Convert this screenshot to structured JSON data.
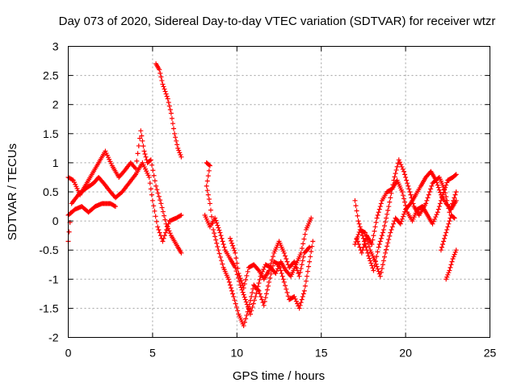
{
  "chart_data": {
    "type": "scatter",
    "title": "Day 073 of 2020, Sidereal Day-to-day VTEC variation (SDTVAR) for receiver wtzr",
    "xlabel": "GPS time / hours",
    "ylabel": "SDTVAR / TECUs",
    "xlim": [
      0,
      25
    ],
    "ylim": [
      -2,
      3
    ],
    "xticks": [
      0,
      5,
      10,
      15,
      20,
      25
    ],
    "yticks": [
      -2,
      -1.5,
      -1,
      -0.5,
      0,
      0.5,
      1,
      1.5,
      2,
      2.5,
      3
    ],
    "grid": true,
    "marker": "plus",
    "color": "#ff0000",
    "series": [
      {
        "values": [
          [
            0.0,
            0.75
          ],
          [
            0.3,
            0.7
          ],
          [
            0.7,
            0.45
          ],
          [
            1.0,
            0.6
          ],
          [
            1.4,
            0.8
          ],
          [
            1.8,
            1.0
          ],
          [
            2.2,
            1.2
          ],
          [
            2.6,
            0.95
          ],
          [
            3.0,
            0.75
          ],
          [
            3.3,
            0.85
          ],
          [
            3.7,
            1.0
          ],
          [
            4.0,
            0.9
          ],
          [
            4.3,
            1.55
          ],
          [
            4.5,
            1.2
          ],
          [
            4.7,
            1.0
          ],
          [
            4.9,
            1.05
          ],
          [
            5.2,
            0.6
          ],
          [
            5.5,
            0.3
          ],
          [
            5.8,
            -0.05
          ],
          [
            6.1,
            -0.25
          ],
          [
            6.5,
            -0.45
          ],
          [
            6.7,
            -0.55
          ]
        ]
      },
      {
        "values": [
          [
            0.0,
            -0.35
          ],
          [
            0.2,
            0.3
          ],
          [
            0.6,
            0.45
          ],
          [
            1.0,
            0.55
          ],
          [
            1.5,
            0.65
          ],
          [
            1.8,
            0.75
          ],
          [
            2.1,
            0.65
          ],
          [
            2.5,
            0.5
          ],
          [
            2.8,
            0.4
          ],
          [
            3.2,
            0.5
          ],
          [
            3.6,
            0.65
          ],
          [
            4.0,
            0.8
          ],
          [
            4.4,
            1.0
          ],
          [
            4.8,
            0.75
          ],
          [
            5.0,
            0.35
          ],
          [
            5.3,
            -0.1
          ],
          [
            5.6,
            -0.35
          ],
          [
            6.0,
            0.0
          ],
          [
            6.4,
            0.05
          ],
          [
            6.7,
            0.1
          ]
        ]
      },
      {
        "values": [
          [
            0.0,
            0.1
          ],
          [
            0.4,
            0.2
          ],
          [
            0.8,
            0.25
          ],
          [
            1.2,
            0.15
          ],
          [
            1.6,
            0.25
          ],
          [
            2.0,
            0.3
          ],
          [
            2.5,
            0.3
          ],
          [
            2.8,
            0.25
          ]
        ]
      },
      {
        "values": [
          [
            5.2,
            2.7
          ],
          [
            5.4,
            2.6
          ],
          [
            5.6,
            2.35
          ],
          [
            5.9,
            2.1
          ],
          [
            6.1,
            1.85
          ],
          [
            6.3,
            1.5
          ],
          [
            6.5,
            1.25
          ],
          [
            6.7,
            1.1
          ]
        ]
      },
      {
        "values": [
          [
            8.2,
            1.0
          ],
          [
            8.4,
            0.95
          ],
          [
            8.2,
            0.6
          ],
          [
            8.4,
            0.3
          ],
          [
            8.6,
            -0.15
          ],
          [
            8.9,
            -0.5
          ],
          [
            9.2,
            -0.8
          ],
          [
            9.5,
            -1.0
          ],
          [
            9.8,
            -1.3
          ],
          [
            10.1,
            -1.6
          ],
          [
            10.4,
            -1.8
          ],
          [
            10.7,
            -1.5
          ],
          [
            11.0,
            -1.1
          ],
          [
            11.3,
            -1.2
          ],
          [
            11.6,
            -1.45
          ],
          [
            11.9,
            -1.05
          ],
          [
            12.2,
            -0.7
          ],
          [
            12.5,
            -0.75
          ],
          [
            12.8,
            -1.05
          ],
          [
            13.1,
            -1.35
          ],
          [
            13.4,
            -1.3
          ],
          [
            13.7,
            -1.5
          ],
          [
            14.0,
            -1.2
          ],
          [
            14.3,
            -0.7
          ],
          [
            14.5,
            -0.35
          ]
        ]
      },
      {
        "values": [
          [
            8.1,
            0.1
          ],
          [
            8.4,
            -0.1
          ],
          [
            8.7,
            0.05
          ],
          [
            9.0,
            -0.2
          ],
          [
            9.3,
            -0.5
          ],
          [
            9.6,
            -0.65
          ],
          [
            9.9,
            -0.8
          ],
          [
            10.2,
            -1.1
          ],
          [
            10.5,
            -1.35
          ],
          [
            10.8,
            -1.6
          ],
          [
            11.1,
            -1.3
          ],
          [
            11.4,
            -0.95
          ],
          [
            11.7,
            -0.75
          ],
          [
            12.0,
            -0.8
          ],
          [
            12.3,
            -0.9
          ],
          [
            12.6,
            -0.7
          ],
          [
            12.9,
            -0.85
          ],
          [
            13.2,
            -0.95
          ],
          [
            13.5,
            -0.75
          ],
          [
            13.8,
            -0.55
          ],
          [
            14.1,
            -0.15
          ],
          [
            14.4,
            0.05
          ]
        ]
      },
      {
        "values": [
          [
            9.6,
            -0.3
          ],
          [
            9.9,
            -0.55
          ],
          [
            10.1,
            -0.9
          ],
          [
            10.4,
            -1.15
          ],
          [
            10.7,
            -0.8
          ],
          [
            11.0,
            -0.75
          ],
          [
            11.3,
            -0.85
          ],
          [
            11.6,
            -1.0
          ],
          [
            11.9,
            -0.85
          ],
          [
            12.2,
            -0.55
          ],
          [
            12.5,
            -0.35
          ],
          [
            12.8,
            -0.55
          ],
          [
            13.1,
            -0.8
          ],
          [
            13.4,
            -0.7
          ],
          [
            13.7,
            -0.95
          ],
          [
            14.0,
            -0.55
          ],
          [
            14.3,
            -0.45
          ]
        ]
      },
      {
        "values": [
          [
            17.0,
            0.35
          ],
          [
            17.2,
            0.0
          ],
          [
            17.5,
            -0.3
          ],
          [
            17.8,
            -0.6
          ],
          [
            18.1,
            -0.85
          ],
          [
            18.4,
            -0.45
          ],
          [
            18.7,
            -0.15
          ],
          [
            19.0,
            0.25
          ],
          [
            19.3,
            0.7
          ],
          [
            19.6,
            1.05
          ],
          [
            19.9,
            0.85
          ],
          [
            20.2,
            0.55
          ],
          [
            20.5,
            0.25
          ],
          [
            20.8,
            0.1
          ],
          [
            21.2,
            0.3
          ],
          [
            21.6,
            0.65
          ],
          [
            22.0,
            0.75
          ],
          [
            22.3,
            0.55
          ],
          [
            22.6,
            0.15
          ],
          [
            23.0,
            0.5
          ]
        ]
      },
      {
        "values": [
          [
            17.1,
            -0.3
          ],
          [
            17.4,
            -0.55
          ],
          [
            17.7,
            -0.25
          ],
          [
            18.0,
            -0.4
          ],
          [
            18.3,
            0.05
          ],
          [
            18.6,
            0.35
          ],
          [
            18.9,
            0.5
          ],
          [
            19.2,
            0.55
          ],
          [
            19.5,
            0.7
          ],
          [
            19.8,
            0.5
          ],
          [
            20.1,
            0.15
          ],
          [
            20.4,
            0.0
          ],
          [
            20.7,
            0.2
          ],
          [
            21.0,
            0.25
          ],
          [
            21.3,
            0.1
          ],
          [
            21.6,
            -0.05
          ],
          [
            21.9,
            0.15
          ],
          [
            22.2,
            0.45
          ],
          [
            22.5,
            0.7
          ],
          [
            22.8,
            0.75
          ],
          [
            23.0,
            0.8
          ]
        ]
      },
      {
        "values": [
          [
            17.0,
            -0.4
          ],
          [
            17.3,
            -0.15
          ],
          [
            17.6,
            -0.2
          ],
          [
            17.9,
            -0.5
          ],
          [
            18.2,
            -0.7
          ],
          [
            18.5,
            -0.95
          ],
          [
            18.8,
            -0.55
          ],
          [
            19.1,
            -0.2
          ],
          [
            19.4,
            0.05
          ],
          [
            19.7,
            -0.05
          ],
          [
            20.0,
            0.2
          ],
          [
            20.3,
            0.3
          ],
          [
            20.6,
            0.45
          ],
          [
            20.9,
            0.6
          ],
          [
            21.2,
            0.75
          ],
          [
            21.5,
            0.85
          ],
          [
            21.8,
            0.7
          ],
          [
            22.1,
            0.45
          ],
          [
            22.4,
            0.3
          ],
          [
            22.7,
            0.2
          ],
          [
            23.0,
            0.35
          ]
        ]
      },
      {
        "values": [
          [
            22.1,
            -0.5
          ],
          [
            22.3,
            -0.3
          ],
          [
            22.5,
            -0.1
          ],
          [
            22.7,
            0.1
          ],
          [
            22.9,
            0.05
          ]
        ]
      },
      {
        "values": [
          [
            22.4,
            -1.0
          ],
          [
            22.6,
            -0.85
          ],
          [
            22.8,
            -0.65
          ],
          [
            23.0,
            -0.5
          ]
        ]
      }
    ]
  }
}
